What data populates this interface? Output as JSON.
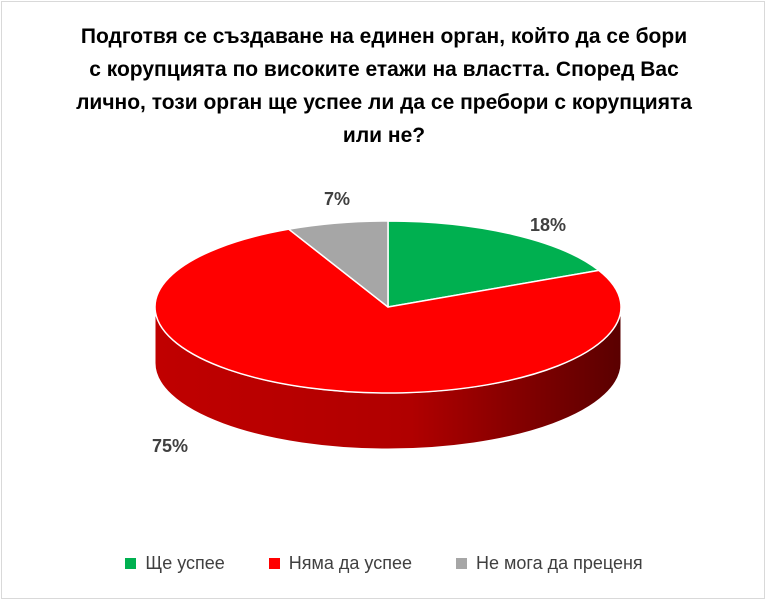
{
  "chart_data": {
    "type": "pie",
    "title_lines": [
      "Подготвя се създаване на единен орган, който да се бори",
      "с корупцията по високите етажи на властта. Според Вас",
      "лично, този орган ще успее ли да се пребори с корупцията",
      "или не?"
    ],
    "slices": [
      {
        "label": "Ще успее",
        "value": 18,
        "value_label": "18%",
        "color": "#00b050"
      },
      {
        "label": "Няма да успее",
        "value": 75,
        "value_label": "75%",
        "color": "#ff0000"
      },
      {
        "label": "Не мога да преценя",
        "value": 7,
        "value_label": "7%",
        "color": "#a6a6a6"
      }
    ],
    "legend_placement": "bottom",
    "style": "3d"
  }
}
